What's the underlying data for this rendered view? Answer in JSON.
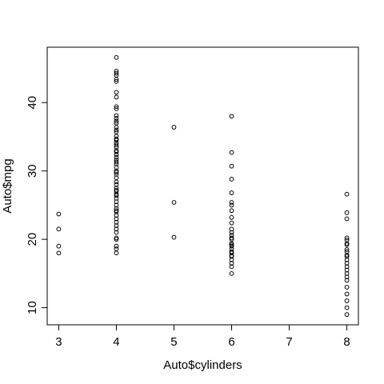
{
  "chart_data": {
    "type": "scatter",
    "xlabel": "Auto$cylinders",
    "ylabel": "Auto$mpg",
    "color": "#000000",
    "x": [
      3,
      3,
      3,
      3,
      4,
      4,
      4,
      4,
      4,
      4,
      4,
      4,
      4,
      4,
      4,
      4,
      4,
      4,
      4,
      4,
      4,
      4,
      4,
      4,
      4,
      4,
      4,
      4,
      4,
      4,
      4,
      4,
      4,
      4,
      4,
      4,
      4,
      4,
      4,
      4,
      4,
      4,
      4,
      4,
      4,
      4,
      4,
      4,
      4,
      4,
      4,
      4,
      4,
      4,
      4,
      4,
      4,
      4,
      4,
      4,
      4,
      4,
      4,
      5,
      5,
      5,
      6,
      6,
      6,
      6,
      6,
      6,
      6,
      6,
      6,
      6,
      6,
      6,
      6,
      6,
      6,
      6,
      6,
      6,
      6,
      6,
      6,
      6,
      6,
      6,
      6,
      6,
      6,
      8,
      8,
      8,
      8,
      8,
      8,
      8,
      8,
      8,
      8,
      8,
      8,
      8,
      8,
      8,
      8,
      8,
      8,
      8,
      8,
      8,
      8,
      8
    ],
    "values": [
      23.7,
      21.5,
      19,
      18,
      46.6,
      44.6,
      44.3,
      44,
      43.4,
      43.1,
      41.5,
      40.8,
      39.4,
      39.1,
      38.1,
      37.7,
      37.3,
      37,
      36.4,
      36,
      35.7,
      35.1,
      34.7,
      34.5,
      34.1,
      33.8,
      33.5,
      33,
      32.8,
      32.4,
      32,
      31.6,
      31.3,
      31,
      30.5,
      30,
      29.8,
      29.5,
      29,
      28.4,
      28,
      27.5,
      27.2,
      27,
      26.6,
      26.4,
      26,
      25.5,
      25,
      24.5,
      24.2,
      24,
      23.5,
      23,
      22.5,
      22,
      21.5,
      21,
      20.2,
      20,
      19,
      18.6,
      18,
      36.4,
      25.4,
      20.3,
      38,
      32.7,
      30.7,
      28.8,
      26.8,
      25.4,
      25,
      24.2,
      23.2,
      22.4,
      21.5,
      21,
      20.6,
      20.2,
      20,
      19.4,
      19.2,
      19,
      18.6,
      18.2,
      18,
      17.6,
      17.5,
      17,
      16.5,
      16,
      15,
      26.6,
      23.9,
      23,
      20.2,
      19.9,
      19.4,
      19.2,
      18.5,
      18.2,
      17.7,
      17.5,
      17,
      16.5,
      16,
      15.5,
      15,
      14.5,
      14,
      13,
      12,
      11,
      10,
      9
    ],
    "xlim": [
      2.8,
      8.2
    ],
    "xticks": [
      3,
      4,
      5,
      6,
      7,
      8
    ],
    "ylim": [
      7.496,
      48.104
    ],
    "yticks": [
      10,
      20,
      30,
      40
    ]
  }
}
